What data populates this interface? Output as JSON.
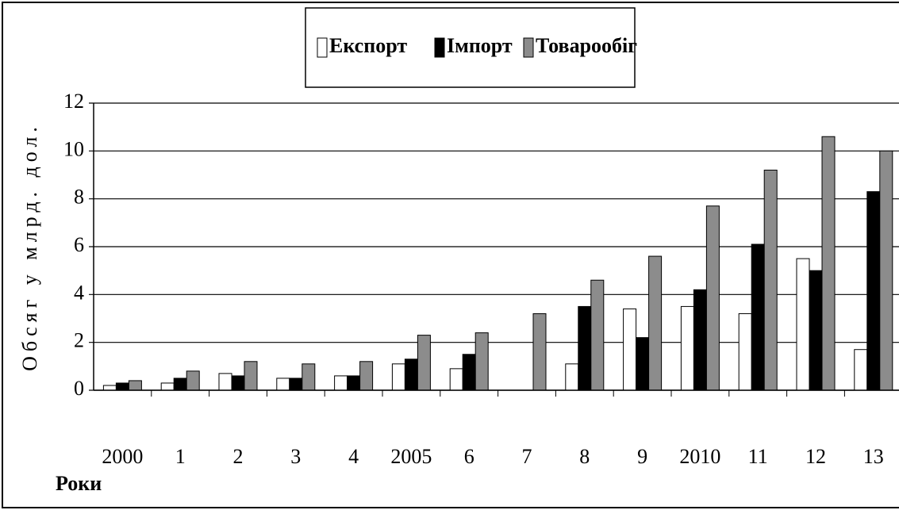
{
  "chart_data": {
    "type": "bar",
    "y_label": "Обсяг у млрд. дол.",
    "x_label": "Роки",
    "categories": [
      "2000",
      "1",
      "2",
      "3",
      "4",
      "2005",
      "6",
      "7",
      "8",
      "9",
      "2010",
      "11",
      "12",
      "13"
    ],
    "series": [
      {
        "name": "Експорт",
        "color": "#ffffff",
        "values": [
          0.2,
          0.3,
          0.7,
          0.5,
          0.6,
          1.1,
          0.9,
          null,
          1.1,
          3.4,
          3.5,
          3.2,
          5.5,
          1.7
        ]
      },
      {
        "name": "Імпорт",
        "color": "#000000",
        "values": [
          0.3,
          0.5,
          0.6,
          0.5,
          0.6,
          1.3,
          1.5,
          null,
          3.5,
          2.2,
          4.2,
          6.1,
          5.0,
          8.3
        ]
      },
      {
        "name": "Товарообіг",
        "color": "#8c8c8c",
        "values": [
          0.4,
          0.8,
          1.2,
          1.1,
          1.2,
          2.3,
          2.4,
          3.2,
          4.6,
          5.6,
          7.7,
          9.2,
          10.6,
          10.0
        ]
      }
    ],
    "ylim": [
      0,
      12
    ],
    "yticks": [
      0,
      2,
      4,
      6,
      8,
      10,
      12
    ],
    "grid": true,
    "legend": "top"
  }
}
